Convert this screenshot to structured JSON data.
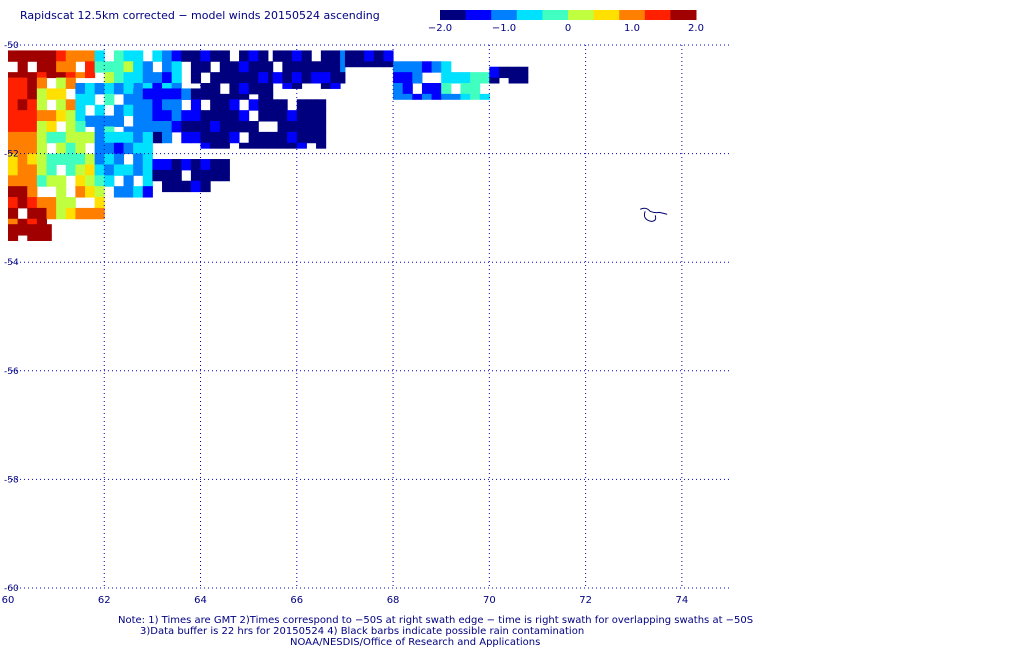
{
  "title": "Rapidscat 12.5km corrected − model winds 20150524 ascending",
  "colorbar": {
    "tick_labels": [
      "−2.0",
      "−1.0",
      "0",
      "1.0",
      "2.0"
    ],
    "colors": [
      "#00007f",
      "#0000ff",
      "#0080ff",
      "#00e0ff",
      "#40ffc0",
      "#c0ff40",
      "#ffe000",
      "#ff8000",
      "#ff2000",
      "#a00000"
    ]
  },
  "notes": {
    "line1": "Note: 1) Times are GMT 2)Times correspond to −50S at right swath edge − time is right swath for overlapping swaths at −50S",
    "line2": "3)Data buffer is 22 hrs for 20150524 4) Black barbs indicate possible rain contamination",
    "line3": "NOAA/NESDIS/Office of Research and Applications"
  },
  "chart_data": {
    "type": "heatmap",
    "title": "Rapidscat 12.5km corrected − model winds 20150524 ascending",
    "x_ticks": [
      60,
      62,
      64,
      66,
      68,
      70,
      72,
      74
    ],
    "y_ticks": [
      -50,
      -52,
      -54,
      -56,
      -58,
      -60
    ],
    "x_tick_labels": [
      "60",
      "62",
      "64",
      "66",
      "68",
      "70",
      "72",
      "74"
    ],
    "y_tick_labels": [
      "-50",
      "-52",
      "-54",
      "-56",
      "-58",
      "-60"
    ],
    "xlim": [
      60,
      75
    ],
    "ylim": [
      -60,
      -50
    ],
    "grid": true,
    "value_range": [
      -2.0,
      2.0
    ],
    "coastline": "small island near 73.5E, 53.1S",
    "regions": [
      {
        "lon": [
          60.0,
          61.0
        ],
        "lat": [
          -50.1,
          -50.6
        ],
        "value": 2.0
      },
      {
        "lon": [
          61.0,
          61.8
        ],
        "lat": [
          -50.1,
          -50.6
        ],
        "value": 1.2
      },
      {
        "lon": [
          61.8,
          62.6
        ],
        "lat": [
          -50.1,
          -50.7
        ],
        "value": -0.2
      },
      {
        "lon": [
          62.6,
          63.6
        ],
        "lat": [
          -50.1,
          -50.8
        ],
        "value": -0.9
      },
      {
        "lon": [
          63.6,
          65.5
        ],
        "lat": [
          -50.1,
          -51.0
        ],
        "value": -1.8
      },
      {
        "lon": [
          65.5,
          67.0
        ],
        "lat": [
          -50.1,
          -50.8
        ],
        "value": -1.6
      },
      {
        "lon": [
          67.0,
          68.0
        ],
        "lat": [
          -50.1,
          -50.4
        ],
        "value": -1.9
      },
      {
        "lon": [
          68.0,
          69.0
        ],
        "lat": [
          -50.3,
          -51.0
        ],
        "value": -1.1
      },
      {
        "lon": [
          69.0,
          70.0
        ],
        "lat": [
          -50.3,
          -51.0
        ],
        "value": -0.5
      },
      {
        "lon": [
          70.0,
          70.8
        ],
        "lat": [
          -50.4,
          -50.7
        ],
        "value": -1.9
      },
      {
        "lon": [
          60.0,
          60.6
        ],
        "lat": [
          -50.6,
          -51.6
        ],
        "value": 1.6
      },
      {
        "lon": [
          60.6,
          61.4
        ],
        "lat": [
          -50.6,
          -51.4
        ],
        "value": 0.6
      },
      {
        "lon": [
          61.4,
          62.6
        ],
        "lat": [
          -50.7,
          -51.6
        ],
        "value": -0.7
      },
      {
        "lon": [
          62.6,
          64.0
        ],
        "lat": [
          -50.8,
          -51.8
        ],
        "value": -1.3
      },
      {
        "lon": [
          64.0,
          66.6
        ],
        "lat": [
          -51.0,
          -51.9
        ],
        "value": -1.9
      },
      {
        "lon": [
          60.0,
          60.6
        ],
        "lat": [
          -51.6,
          -52.6
        ],
        "value": 0.8
      },
      {
        "lon": [
          60.6,
          61.8
        ],
        "lat": [
          -51.4,
          -52.6
        ],
        "value": 0.1
      },
      {
        "lon": [
          61.8,
          63.0
        ],
        "lat": [
          -51.6,
          -52.8
        ],
        "value": -0.8
      },
      {
        "lon": [
          63.0,
          64.6
        ],
        "lat": [
          -52.1,
          -52.7
        ],
        "value": -1.7
      },
      {
        "lon": [
          60.0,
          61.0
        ],
        "lat": [
          -52.6,
          -53.3
        ],
        "value": 1.4
      },
      {
        "lon": [
          61.0,
          62.0
        ],
        "lat": [
          -52.6,
          -53.2
        ],
        "value": 0.5
      },
      {
        "lon": [
          60.0,
          60.9
        ],
        "lat": [
          -53.3,
          -53.6
        ],
        "value": 2.0
      }
    ]
  }
}
